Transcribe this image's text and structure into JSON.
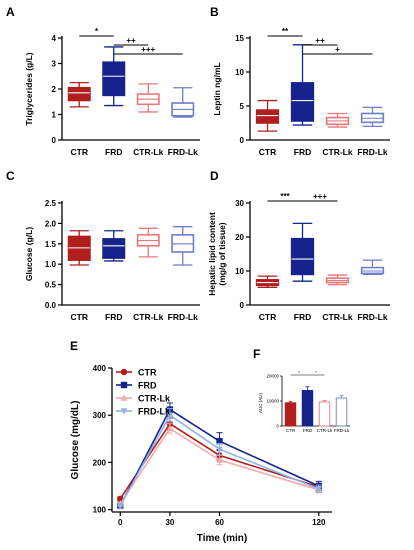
{
  "colors": {
    "CTR": "#b01e1e",
    "FRD": "#16238c",
    "CTR-Lk": "#e87878",
    "FRD-Lk": "#6e7ec8",
    "line_CTR-Lk": "#f2aaaa",
    "line_FRD-Lk": "#8fb4e6"
  },
  "chart_data": [
    {
      "panel": "A",
      "type": "box",
      "categories": [
        "CTR",
        "FRD",
        "CTR-Lk",
        "FRD-Lk"
      ],
      "ylabel": "Triglycerides (g/L)",
      "ylim": [
        0,
        4
      ],
      "yticks": [
        0,
        1,
        2,
        3,
        4
      ],
      "boxes": [
        {
          "name": "CTR",
          "min": 1.3,
          "q1": 1.55,
          "median": 1.85,
          "q3": 2.05,
          "max": 2.25,
          "fill": true
        },
        {
          "name": "FRD",
          "min": 1.35,
          "q1": 1.75,
          "median": 2.5,
          "q3": 3.05,
          "max": 3.65,
          "fill": true
        },
        {
          "name": "CTR-Lk",
          "min": 1.1,
          "q1": 1.4,
          "median": 1.6,
          "q3": 1.8,
          "max": 2.2,
          "fill": false
        },
        {
          "name": "FRD-Lk",
          "min": 0.9,
          "q1": 0.95,
          "median": 1.2,
          "q3": 1.45,
          "max": 2.05,
          "fill": false
        }
      ],
      "significance": [
        {
          "from": 0,
          "to": 1,
          "label": "*",
          "level": 0
        },
        {
          "from": 1,
          "to": 2,
          "label": "++",
          "level": 1
        },
        {
          "from": 1,
          "to": 3,
          "label": "+++",
          "level": 2
        }
      ]
    },
    {
      "panel": "B",
      "type": "box",
      "categories": [
        "CTR",
        "FRD",
        "CTR-Lk",
        "FRD-Lk"
      ],
      "ylabel": "Leptin ng/mL",
      "ylim": [
        0,
        15
      ],
      "yticks": [
        0,
        5,
        10,
        15
      ],
      "boxes": [
        {
          "name": "CTR",
          "min": 1.3,
          "q1": 2.5,
          "median": 3.6,
          "q3": 4.4,
          "max": 5.8,
          "fill": true
        },
        {
          "name": "FRD",
          "min": 2.2,
          "q1": 2.8,
          "median": 5.8,
          "q3": 8.4,
          "max": 14.0,
          "fill": true
        },
        {
          "name": "CTR-Lk",
          "min": 1.9,
          "q1": 2.3,
          "median": 2.8,
          "q3": 3.3,
          "max": 3.9,
          "fill": false
        },
        {
          "name": "FRD-Lk",
          "min": 2.0,
          "q1": 2.6,
          "median": 3.2,
          "q3": 3.9,
          "max": 4.8,
          "fill": false
        }
      ],
      "significance": [
        {
          "from": 0,
          "to": 1,
          "label": "**",
          "level": 0
        },
        {
          "from": 1,
          "to": 2,
          "label": "++",
          "level": 1
        },
        {
          "from": 1,
          "to": 3,
          "label": "+",
          "level": 2
        }
      ]
    },
    {
      "panel": "C",
      "type": "box",
      "categories": [
        "CTR",
        "FRD",
        "CTR-Lk",
        "FRD-Lk"
      ],
      "ylabel": "Glucose (g/L)",
      "ylim": [
        0,
        2.5
      ],
      "yticks": [
        0.0,
        0.5,
        1.0,
        1.5,
        2.0,
        2.5
      ],
      "boxes": [
        {
          "name": "CTR",
          "min": 0.98,
          "q1": 1.1,
          "median": 1.4,
          "q3": 1.68,
          "max": 1.82,
          "fill": true
        },
        {
          "name": "FRD",
          "min": 1.08,
          "q1": 1.15,
          "median": 1.45,
          "q3": 1.62,
          "max": 1.82,
          "fill": true
        },
        {
          "name": "CTR-Lk",
          "min": 1.18,
          "q1": 1.45,
          "median": 1.58,
          "q3": 1.72,
          "max": 1.88,
          "fill": false
        },
        {
          "name": "FRD-Lk",
          "min": 0.98,
          "q1": 1.3,
          "median": 1.5,
          "q3": 1.72,
          "max": 1.92,
          "fill": false
        }
      ],
      "significance": []
    },
    {
      "panel": "D",
      "type": "box",
      "categories": [
        "CTR",
        "FRD",
        "CTR-Lk",
        "FRD-Lk"
      ],
      "ylabel": "Hepatic lipid content\n(mg/g of tissue)",
      "ylim": [
        0,
        30
      ],
      "yticks": [
        0,
        10,
        20,
        30
      ],
      "boxes": [
        {
          "name": "CTR",
          "min": 5.2,
          "q1": 5.8,
          "median": 6.6,
          "q3": 7.4,
          "max": 8.5,
          "fill": true
        },
        {
          "name": "FRD",
          "min": 7.0,
          "q1": 9.0,
          "median": 13.5,
          "q3": 19.5,
          "max": 24.0,
          "fill": true
        },
        {
          "name": "CTR-Lk",
          "min": 6.0,
          "q1": 6.6,
          "median": 7.2,
          "q3": 7.9,
          "max": 8.8,
          "fill": false
        },
        {
          "name": "FRD-Lk",
          "min": 9.0,
          "q1": 9.3,
          "median": 10.0,
          "q3": 11.0,
          "max": 13.2,
          "fill": false
        }
      ],
      "significance": [
        {
          "from": 0,
          "to": 1,
          "label": "***",
          "level": 0
        },
        {
          "from": 1,
          "to": 2,
          "label": "+++",
          "level": 0
        }
      ]
    },
    {
      "panel": "E",
      "type": "line",
      "x": [
        0,
        30,
        60,
        120
      ],
      "xlabel": "Time (min)",
      "ylabel": "Glucose (mg/dL)",
      "xlim": [
        -5,
        128
      ],
      "ylim": [
        95,
        400
      ],
      "yticks": [
        100,
        200,
        300,
        400
      ],
      "legend": "top-left",
      "series": [
        {
          "name": "CTR",
          "marker": "circle",
          "values": [
            123,
            282,
            215,
            148
          ],
          "errors": [
            4,
            12,
            10,
            8
          ]
        },
        {
          "name": "FRD",
          "marker": "square",
          "values": [
            108,
            312,
            245,
            150
          ],
          "errors": [
            5,
            14,
            18,
            10
          ]
        },
        {
          "name": "CTR-Lk",
          "marker": "triangle-up",
          "values": [
            112,
            272,
            205,
            142
          ],
          "errors": [
            4,
            10,
            10,
            6
          ]
        },
        {
          "name": "FRD-Lk",
          "marker": "triangle-down",
          "values": [
            108,
            300,
            228,
            144
          ],
          "errors": [
            5,
            14,
            12,
            8
          ]
        }
      ]
    },
    {
      "panel": "F",
      "type": "bar",
      "categories": [
        "CTR",
        "FRD",
        "CTR-Lk",
        "FRD-Lk"
      ],
      "ylabel": "AUC (AU)",
      "ylim": [
        0,
        20000
      ],
      "yticks": [
        0,
        10000,
        20000
      ],
      "values": [
        9300,
        14200,
        9600,
        11200
      ],
      "errors": [
        600,
        1500,
        600,
        1100
      ],
      "fill": [
        true,
        true,
        false,
        false
      ],
      "significance": [
        {
          "from": 0,
          "to": 1,
          "label": "*",
          "level": 0
        },
        {
          "from": 1,
          "to": 2,
          "label": "*",
          "level": 0
        }
      ]
    }
  ]
}
